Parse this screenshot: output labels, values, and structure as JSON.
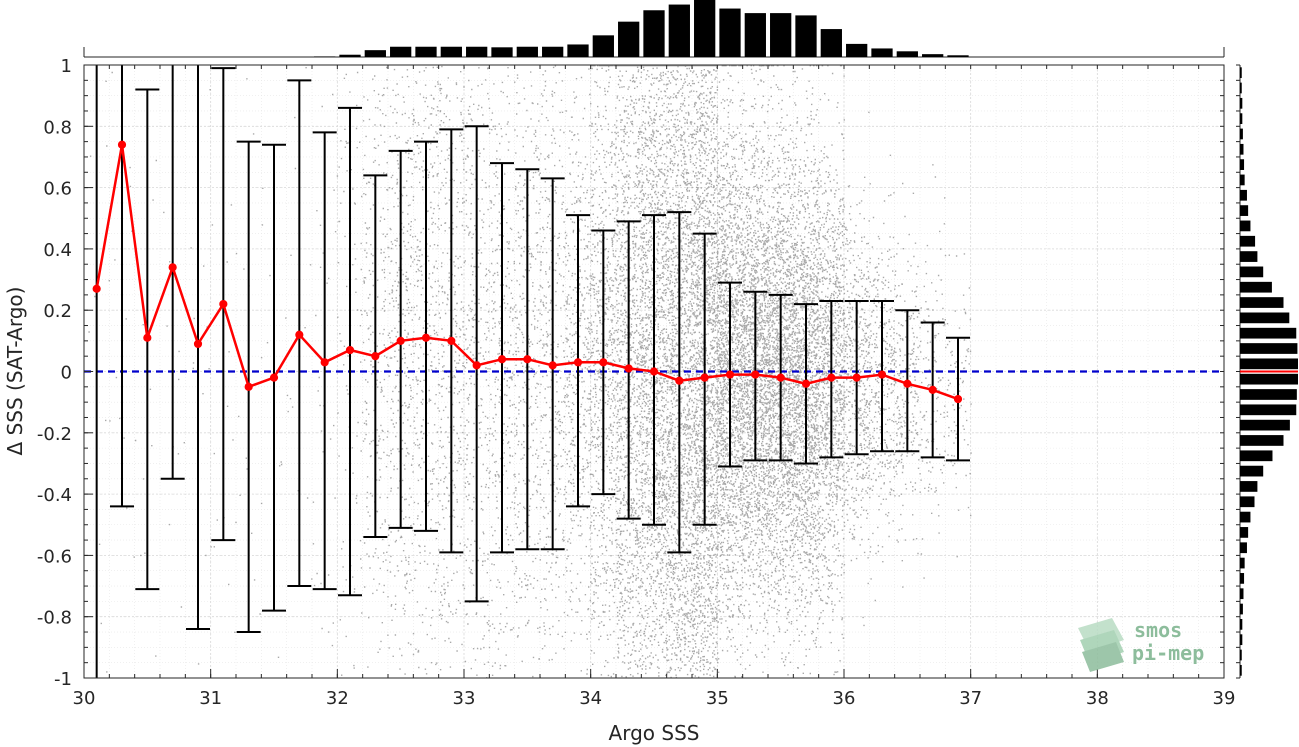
{
  "chart_data": {
    "type": "scatter",
    "title": "",
    "xlabel": "Argo SSS",
    "ylabel": "Δ SSS (SAT-Argo)",
    "xlim": [
      30,
      39
    ],
    "ylim": [
      -1,
      1
    ],
    "xticks": [
      "30",
      "31",
      "32",
      "33",
      "34",
      "35",
      "36",
      "37",
      "38",
      "39"
    ],
    "yticks": [
      "-1",
      "-0.8",
      "-0.6",
      "-0.4",
      "-0.2",
      "0",
      "0.2",
      "0.4",
      "0.6",
      "0.8",
      "1"
    ],
    "grid": true,
    "colors": {
      "scatter": "#8c8c8c",
      "mean_line": "#ff0000",
      "errorbar": "#000000",
      "zero_line": "#0000cc",
      "histogram": "#000000"
    },
    "zero_reference": 0,
    "binned_stats": {
      "x": [
        30.1,
        30.3,
        30.5,
        30.7,
        30.9,
        31.1,
        31.3,
        31.5,
        31.7,
        31.9,
        32.1,
        32.3,
        32.5,
        32.7,
        32.9,
        33.1,
        33.3,
        33.5,
        33.7,
        33.9,
        34.1,
        34.3,
        34.5,
        34.7,
        34.9,
        35.1,
        35.3,
        35.5,
        35.7,
        35.9,
        36.1,
        36.3,
        36.5,
        36.7,
        36.9
      ],
      "mean": [
        0.27,
        0.74,
        0.11,
        0.34,
        0.09,
        0.22,
        -0.05,
        -0.02,
        0.12,
        0.03,
        0.07,
        0.05,
        0.1,
        0.11,
        0.1,
        0.02,
        0.04,
        0.04,
        0.02,
        0.03,
        0.03,
        0.01,
        0.0,
        -0.03,
        -0.02,
        -0.01,
        -0.01,
        -0.02,
        -0.04,
        -0.02,
        -0.02,
        -0.01,
        -0.04,
        -0.06,
        -0.09
      ],
      "err_low": [
        -1.0,
        -0.44,
        -0.71,
        -0.35,
        -0.84,
        -0.55,
        -0.85,
        -0.78,
        -0.7,
        -0.71,
        -0.73,
        -0.54,
        -0.51,
        -0.52,
        -0.59,
        -0.75,
        -0.59,
        -0.58,
        -0.58,
        -0.44,
        -0.4,
        -0.48,
        -0.5,
        -0.59,
        -0.5,
        -0.31,
        -0.29,
        -0.29,
        -0.3,
        -0.28,
        -0.27,
        -0.26,
        -0.26,
        -0.28,
        -0.29
      ],
      "err_high": [
        1.0,
        1.0,
        0.92,
        1.0,
        1.0,
        0.99,
        0.75,
        0.74,
        0.95,
        0.78,
        0.86,
        0.64,
        0.72,
        0.75,
        0.79,
        0.8,
        0.68,
        0.66,
        0.63,
        0.51,
        0.46,
        0.49,
        0.51,
        0.52,
        0.45,
        0.29,
        0.26,
        0.25,
        0.22,
        0.23,
        0.23,
        0.23,
        0.2,
        0.16,
        0.11
      ]
    },
    "top_histogram": {
      "bin_centers": [
        30.1,
        30.3,
        30.5,
        30.7,
        30.9,
        31.1,
        31.3,
        31.5,
        31.7,
        31.9,
        32.1,
        32.3,
        32.5,
        32.7,
        32.9,
        33.1,
        33.3,
        33.5,
        33.7,
        33.9,
        34.1,
        34.3,
        34.5,
        34.7,
        34.9,
        35.1,
        35.3,
        35.5,
        35.7,
        35.9,
        36.1,
        36.3,
        36.5,
        36.7,
        36.9
      ],
      "relative_counts": [
        0.0,
        0.0,
        0.0,
        0.0,
        0.0,
        0.0,
        0.0,
        0.0,
        0.0,
        0.01,
        0.04,
        0.12,
        0.18,
        0.18,
        0.18,
        0.18,
        0.17,
        0.18,
        0.18,
        0.22,
        0.38,
        0.62,
        0.82,
        0.92,
        1.0,
        0.85,
        0.77,
        0.77,
        0.73,
        0.49,
        0.23,
        0.15,
        0.1,
        0.05,
        0.03
      ]
    },
    "right_histogram": {
      "bin_centers": [
        0.975,
        0.925,
        0.875,
        0.825,
        0.775,
        0.725,
        0.675,
        0.625,
        0.575,
        0.525,
        0.475,
        0.425,
        0.375,
        0.325,
        0.275,
        0.225,
        0.175,
        0.125,
        0.075,
        0.025,
        -0.025,
        -0.075,
        -0.125,
        -0.175,
        -0.225,
        -0.275,
        -0.325,
        -0.375,
        -0.425,
        -0.475,
        -0.525,
        -0.575,
        -0.625,
        -0.675,
        -0.725,
        -0.775,
        -0.825,
        -0.875,
        -0.925,
        -0.975
      ],
      "relative_counts": [
        0.03,
        0.03,
        0.04,
        0.04,
        0.05,
        0.06,
        0.07,
        0.08,
        0.12,
        0.14,
        0.18,
        0.26,
        0.3,
        0.4,
        0.55,
        0.75,
        0.85,
        0.97,
        0.99,
        1.0,
        1.0,
        0.98,
        0.97,
        0.86,
        0.75,
        0.56,
        0.4,
        0.3,
        0.25,
        0.18,
        0.14,
        0.12,
        0.08,
        0.07,
        0.06,
        0.05,
        0.04,
        0.04,
        0.03,
        0.03
      ]
    },
    "right_histogram_marker": 0
  },
  "logo": {
    "line1": "smos",
    "line2": "pi-mep",
    "color": "#8dbd9c"
  }
}
